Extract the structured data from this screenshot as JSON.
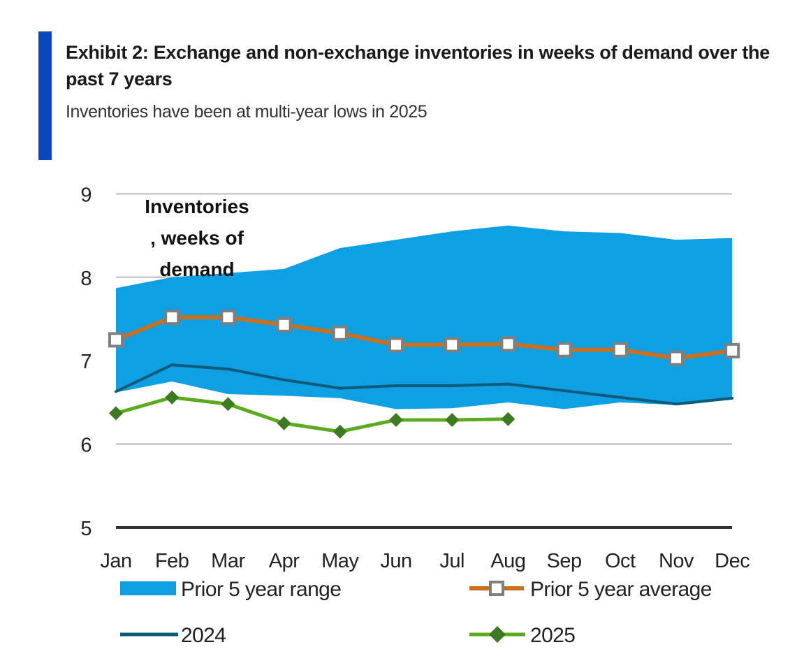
{
  "header": {
    "title": "Exhibit 2: Exchange and non-exchange inventories in weeks of demand over the past 7 years",
    "subtitle": "Inventories have been at multi-year lows in 2025"
  },
  "colors": {
    "accent_bar": "#0b47c2",
    "range_fill": "#0ea0e2",
    "average_line": "#c8701e",
    "average_marker_stroke": "#7f7f7f",
    "line_2024": "#0e5a7a",
    "line_2025": "#5cab1e",
    "marker_2025": "#3d7a22",
    "grid": "#c8c8c8",
    "axis": "#333333"
  },
  "chart_data": {
    "type": "line",
    "title": "Inventories , weeks of demand",
    "annotation_lines": [
      "Inventories",
      ", weeks of",
      "demand"
    ],
    "ylabel": "Inventories, weeks of demand",
    "xlabel": "",
    "ylim": [
      5,
      9
    ],
    "yticks": [
      5,
      6,
      7,
      8,
      9
    ],
    "grid": true,
    "categories": [
      "Jan",
      "Feb",
      "Mar",
      "Apr",
      "May",
      "Jun",
      "Jul",
      "Aug",
      "Sep",
      "Oct",
      "Nov",
      "Dec"
    ],
    "series": [
      {
        "name": "Prior 5 year range",
        "kind": "band",
        "upper": [
          7.87,
          8.0,
          8.05,
          8.1,
          8.35,
          8.45,
          8.55,
          8.62,
          8.55,
          8.53,
          8.45,
          8.47
        ],
        "lower": [
          6.62,
          6.75,
          6.6,
          6.58,
          6.55,
          6.42,
          6.43,
          6.5,
          6.42,
          6.5,
          6.47,
          6.55
        ]
      },
      {
        "name": "Prior 5 year average",
        "kind": "line-square",
        "values": [
          7.25,
          7.52,
          7.52,
          7.43,
          7.33,
          7.19,
          7.19,
          7.2,
          7.13,
          7.13,
          7.03,
          7.12
        ]
      },
      {
        "name": "2024",
        "kind": "line",
        "values": [
          6.63,
          6.95,
          6.9,
          6.77,
          6.67,
          6.7,
          6.7,
          6.72,
          6.64,
          6.56,
          6.48,
          6.55
        ]
      },
      {
        "name": "2025",
        "kind": "line-diamond",
        "values": [
          6.37,
          6.56,
          6.48,
          6.25,
          6.15,
          6.29,
          6.29,
          6.3,
          null,
          null,
          null,
          null
        ]
      }
    ],
    "legend": {
      "position": "bottom",
      "items": [
        "Prior 5 year range",
        "Prior 5 year average",
        "2024",
        "2025"
      ]
    }
  }
}
